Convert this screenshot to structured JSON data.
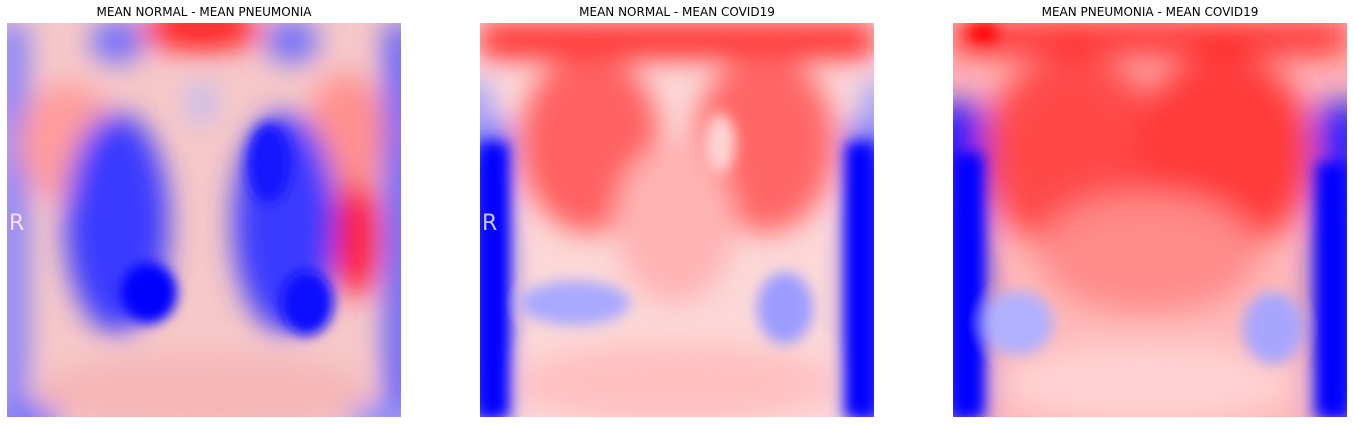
{
  "colors": {
    "positive": "#ff0000",
    "neutral": "#ffffff",
    "negative": "#0000ff"
  },
  "colormap": "bwr",
  "panels": [
    {
      "title": "MEAN NORMAL - MEAN PNEUMONIA",
      "marker_letter": "R"
    },
    {
      "title": "MEAN NORMAL - MEAN COVID19",
      "marker_letter": "R"
    },
    {
      "title": "MEAN PNEUMONIA - MEAN COVID19"
    }
  ]
}
